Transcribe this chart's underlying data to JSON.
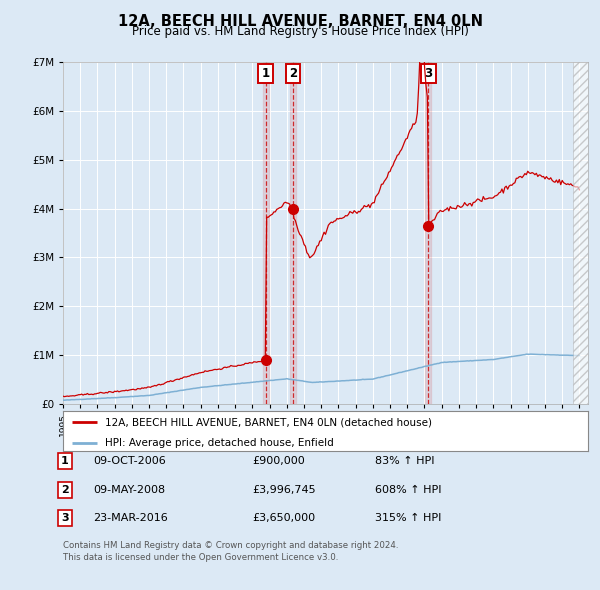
{
  "title": "12A, BEECH HILL AVENUE, BARNET, EN4 0LN",
  "subtitle": "Price paid vs. HM Land Registry's House Price Index (HPI)",
  "background_color": "#dce9f5",
  "plot_bg_color": "#dce9f5",
  "grid_color": "#ffffff",
  "hpi_line_color": "#7eb0d4",
  "price_line_color": "#cc0000",
  "ylim": [
    0,
    7000000
  ],
  "yticks": [
    0,
    1000000,
    2000000,
    3000000,
    4000000,
    5000000,
    6000000,
    7000000
  ],
  "ytick_labels": [
    "£0",
    "£1M",
    "£2M",
    "£3M",
    "£4M",
    "£5M",
    "£6M",
    "£7M"
  ],
  "xlim_start": 1995.0,
  "xlim_end": 2025.5,
  "sale1_x": 2006.77,
  "sale1_y": 900000,
  "sale1_label": "1",
  "sale1_date": "09-OCT-2006",
  "sale1_price": "£900,000",
  "sale1_hpi": "83% ↑ HPI",
  "sale2_x": 2008.36,
  "sale2_y": 3996745,
  "sale2_label": "2",
  "sale2_date": "09-MAY-2008",
  "sale2_price": "£3,996,745",
  "sale2_hpi": "608% ↑ HPI",
  "sale3_x": 2016.22,
  "sale3_y": 3650000,
  "sale3_label": "3",
  "sale3_date": "23-MAR-2016",
  "sale3_price": "£3,650,000",
  "sale3_hpi": "315% ↑ HPI",
  "legend_line1": "12A, BEECH HILL AVENUE, BARNET, EN4 0LN (detached house)",
  "legend_line2": "HPI: Average price, detached house, Enfield",
  "footer1": "Contains HM Land Registry data © Crown copyright and database right 2024.",
  "footer2": "This data is licensed under the Open Government Licence v3.0."
}
